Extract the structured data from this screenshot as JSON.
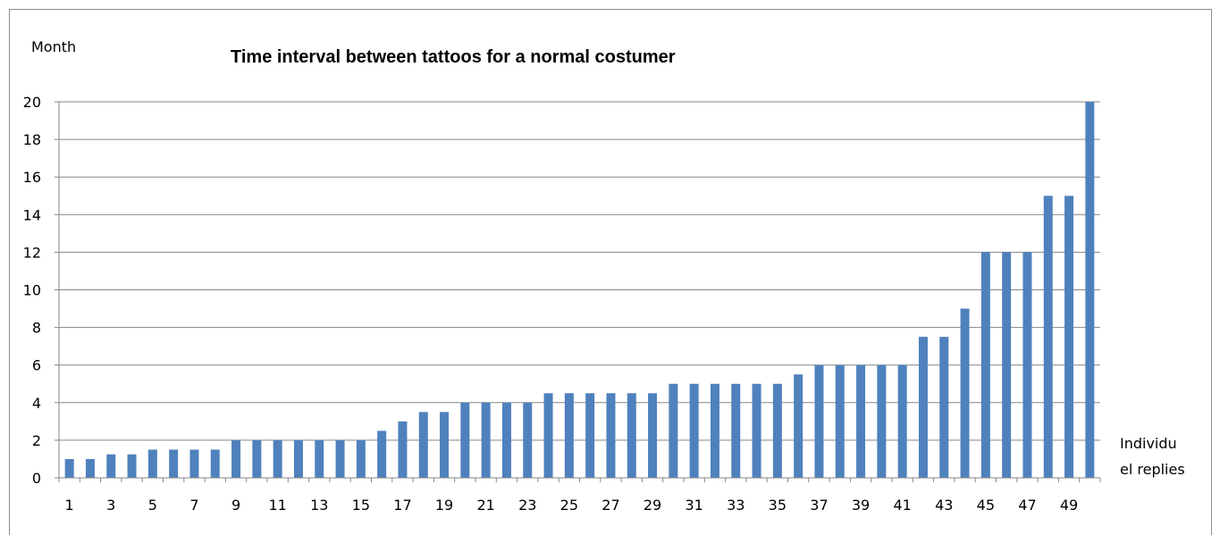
{
  "chart_data": {
    "type": "bar",
    "title": "Time interval  between tattoos for a normal costumer",
    "ylabel": "Month",
    "xlabel_line1": "Individu",
    "xlabel_line2": "el replies",
    "ylim": [
      0,
      20
    ],
    "yticks": [
      0,
      2,
      4,
      6,
      8,
      10,
      12,
      14,
      16,
      18,
      20
    ],
    "grid": true,
    "bar_color": "#4f81bd",
    "categories": [
      1,
      2,
      3,
      4,
      5,
      6,
      7,
      8,
      9,
      10,
      11,
      12,
      13,
      14,
      15,
      16,
      17,
      18,
      19,
      20,
      21,
      22,
      23,
      24,
      25,
      26,
      27,
      28,
      29,
      30,
      31,
      32,
      33,
      34,
      35,
      36,
      37,
      38,
      39,
      40,
      41,
      42,
      43,
      44,
      45,
      46,
      47,
      48,
      49,
      50
    ],
    "xtick_labels": [
      "1",
      "3",
      "5",
      "7",
      "9",
      "11",
      "13",
      "15",
      "17",
      "19",
      "21",
      "23",
      "25",
      "27",
      "29",
      "31",
      "33",
      "35",
      "37",
      "39",
      "41",
      "43",
      "45",
      "47",
      "49"
    ],
    "values": [
      1,
      1,
      1.25,
      1.25,
      1.5,
      1.5,
      1.5,
      1.5,
      2,
      2,
      2,
      2,
      2,
      2,
      2,
      2.5,
      3,
      3.5,
      3.5,
      4,
      4,
      4,
      4,
      4.5,
      4.5,
      4.5,
      4.5,
      4.5,
      4.5,
      5,
      5,
      5,
      5,
      5,
      5,
      5.5,
      6,
      6,
      6,
      6,
      6,
      7.5,
      7.5,
      9,
      12,
      12,
      12,
      15,
      15,
      20
    ]
  }
}
